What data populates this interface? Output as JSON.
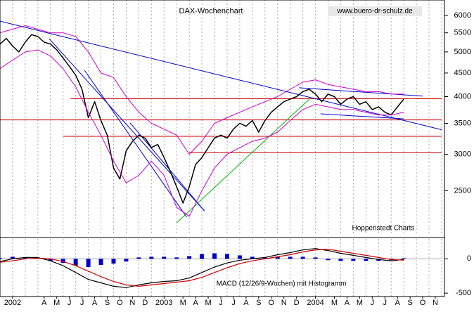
{
  "chart_data": [
    {
      "type": "line",
      "title": "DAX-Wochenchart",
      "source": "www.buero-dr-schulz.de",
      "annotation": "Hoppenstedt Charts",
      "log": true,
      "xlim": [
        0,
        35
      ],
      "ylim": [
        2000,
        6480
      ],
      "yticks": [
        2500,
        3000,
        3500,
        4000,
        4500,
        5000,
        5500,
        6000
      ],
      "xticks": [
        {
          "value": 1,
          "label": "2002"
        },
        {
          "value": 3.5,
          "label": "A"
        },
        {
          "value": 4.5,
          "label": "M"
        },
        {
          "value": 5.5,
          "label": "J"
        },
        {
          "value": 6.5,
          "label": "J"
        },
        {
          "value": 7.5,
          "label": "A"
        },
        {
          "value": 8.5,
          "label": "S"
        },
        {
          "value": 9.5,
          "label": "O"
        },
        {
          "value": 10.5,
          "label": "N"
        },
        {
          "value": 11.5,
          "label": "D"
        },
        {
          "value": 13,
          "label": "2003"
        },
        {
          "value": 14.5,
          "label": "M"
        },
        {
          "value": 15.5,
          "label": "A"
        },
        {
          "value": 16.5,
          "label": "M"
        },
        {
          "value": 17.5,
          "label": "J"
        },
        {
          "value": 18.5,
          "label": "J"
        },
        {
          "value": 19.5,
          "label": "A"
        },
        {
          "value": 20.5,
          "label": "S"
        },
        {
          "value": 21.5,
          "label": "O"
        },
        {
          "value": 22.5,
          "label": "N"
        },
        {
          "value": 23.5,
          "label": "D"
        },
        {
          "value": 25,
          "label": "2004"
        },
        {
          "value": 26.5,
          "label": "M"
        },
        {
          "value": 27.5,
          "label": "A"
        },
        {
          "value": 28.5,
          "label": "M"
        },
        {
          "value": 29.5,
          "label": "J"
        },
        {
          "value": 30.5,
          "label": "J"
        },
        {
          "value": 31.5,
          "label": "A"
        },
        {
          "value": 32.5,
          "label": "S"
        },
        {
          "value": 33.5,
          "label": "O"
        },
        {
          "value": 34.5,
          "label": "N"
        }
      ],
      "series": [
        {
          "color": "#000000",
          "width": 1.5,
          "x": [
            0,
            0.5,
            1,
            1.5,
            2,
            2.5,
            3,
            3.5,
            4,
            4.5,
            5,
            5.5,
            6,
            6.5,
            7,
            7.5,
            8,
            8.5,
            9,
            9.5,
            10,
            10.5,
            11,
            11.5,
            12,
            12.5,
            13,
            13.5,
            14,
            14.5,
            15,
            15.5,
            16,
            16.5,
            17,
            17.5,
            18,
            18.5,
            19,
            19.5,
            20,
            20.5,
            21,
            21.5,
            22,
            22.5,
            23,
            23.5,
            24,
            24.5,
            25,
            25.5,
            26,
            26.5,
            27,
            27.5,
            28,
            28.5,
            29,
            29.5,
            30,
            30.5,
            31,
            31.5,
            32
          ],
          "values": [
            5200,
            5350,
            5150,
            5000,
            5250,
            5450,
            5400,
            5250,
            5200,
            5050,
            4850,
            4650,
            4450,
            4150,
            3600,
            3900,
            3550,
            3300,
            2800,
            2650,
            3050,
            3200,
            3300,
            3250,
            3100,
            3150,
            2950,
            2750,
            2550,
            2350,
            2550,
            2850,
            2950,
            3100,
            3250,
            3300,
            3250,
            3400,
            3500,
            3450,
            3550,
            3350,
            3550,
            3700,
            3800,
            3900,
            3950,
            4000,
            4100,
            4150,
            4050,
            3900,
            4050,
            4000,
            3850,
            3950,
            4000,
            3850,
            3900,
            3750,
            3800,
            3700,
            3650,
            3800,
            3950
          ]
        },
        {
          "color": "#cc00cc",
          "width": 1,
          "x": [
            0,
            1,
            2,
            3,
            4,
            5,
            6,
            7,
            8,
            9,
            10,
            11,
            12,
            13,
            14,
            15,
            16,
            17,
            18,
            19,
            20,
            21,
            22,
            23,
            24,
            25,
            26,
            27,
            28,
            29,
            30,
            31,
            32
          ],
          "values": [
            5500,
            5600,
            5700,
            5600,
            5500,
            5500,
            5400,
            5000,
            4500,
            4400,
            4000,
            3700,
            3500,
            3400,
            3300,
            3000,
            3200,
            3500,
            3600,
            3700,
            3800,
            3900,
            4000,
            4150,
            4300,
            4350,
            4250,
            4200,
            4150,
            4100,
            4100,
            4050,
            4050
          ]
        },
        {
          "color": "#cc00cc",
          "width": 1,
          "x": [
            0,
            1,
            2,
            3,
            4,
            5,
            6,
            7,
            8,
            9,
            10,
            11,
            12,
            13,
            14,
            15,
            16,
            17,
            18,
            19,
            20,
            21,
            22,
            23,
            24,
            25,
            26,
            27,
            28,
            29,
            30,
            31,
            32
          ],
          "values": [
            4600,
            4800,
            5000,
            5050,
            4900,
            4600,
            4200,
            3700,
            3300,
            2900,
            2600,
            2700,
            2900,
            2700,
            2300,
            2200,
            2500,
            2800,
            3000,
            3100,
            3200,
            3250,
            3350,
            3550,
            3750,
            3850,
            3800,
            3750,
            3750,
            3700,
            3650,
            3650,
            3700
          ]
        }
      ],
      "levels": [
        {
          "value": 3960,
          "from": 5.6,
          "color": "#cc0000"
        },
        {
          "value": 3560,
          "from": 0,
          "color": "#cc0000"
        },
        {
          "value": 3280,
          "from": 5,
          "color": "#cc0000"
        },
        {
          "value": 3020,
          "from": 15,
          "color": "#cc0000"
        }
      ],
      "trendlines": [
        {
          "color": "#0000cc",
          "points": [
            [
              0,
              5830
            ],
            [
              35,
              3390
            ]
          ]
        },
        {
          "color": "#0000cc",
          "points": [
            [
              3.9,
              5340
            ],
            [
              16.2,
              2260
            ]
          ]
        },
        {
          "color": "#0000cc",
          "points": [
            [
              10.3,
              3510
            ],
            [
              16.2,
              2260
            ]
          ]
        },
        {
          "color": "#0000cc",
          "points": [
            [
              6.7,
              4560
            ],
            [
              14.8,
              2190
            ]
          ]
        },
        {
          "color": "#0000cc",
          "points": [
            [
              23.7,
              4180
            ],
            [
              33.5,
              4010
            ]
          ]
        },
        {
          "color": "#0000cc",
          "points": [
            [
              25.4,
              3670
            ],
            [
              32,
              3580
            ]
          ]
        },
        {
          "color": "#00bb00",
          "points": [
            [
              14,
              2130
            ],
            [
              24.6,
              3970
            ]
          ]
        }
      ]
    },
    {
      "type": "line",
      "title": "MACD (12/26/9-Wochen) mit Histogramm",
      "xlim": [
        0,
        35
      ],
      "ylim": [
        -550,
        290
      ],
      "yticks": [
        0,
        -500
      ],
      "series": [
        {
          "kind": "bar",
          "color": "#0000cc",
          "x": [
            0,
            1,
            2,
            3,
            4,
            5,
            6,
            7,
            8,
            9,
            10,
            11,
            12,
            13,
            14,
            15,
            16,
            17,
            18,
            19,
            20,
            21,
            22,
            23,
            24,
            25,
            26,
            27,
            28,
            29,
            30,
            31,
            32
          ],
          "values": [
            10,
            30,
            20,
            10,
            -30,
            -60,
            -100,
            -120,
            -90,
            -70,
            -40,
            20,
            30,
            30,
            20,
            40,
            70,
            80,
            70,
            50,
            30,
            20,
            30,
            30,
            30,
            20,
            -20,
            -30,
            -30,
            -30,
            -30,
            -20,
            10
          ]
        },
        {
          "color": "#000000",
          "width": 1.2,
          "x": [
            0,
            1,
            2,
            3,
            4,
            5,
            6,
            7,
            8,
            9,
            10,
            11,
            12,
            13,
            14,
            15,
            16,
            17,
            18,
            19,
            20,
            21,
            22,
            23,
            24,
            25,
            26,
            27,
            28,
            29,
            30,
            31,
            32
          ],
          "values": [
            -40,
            0,
            20,
            20,
            -30,
            -100,
            -200,
            -300,
            -350,
            -400,
            -420,
            -380,
            -350,
            -330,
            -320,
            -280,
            -200,
            -120,
            -60,
            -20,
            0,
            20,
            60,
            90,
            130,
            150,
            120,
            80,
            50,
            20,
            -10,
            -30,
            -10
          ]
        },
        {
          "color": "#cc0000",
          "width": 1.2,
          "x": [
            0,
            1,
            2,
            3,
            4,
            5,
            6,
            7,
            8,
            9,
            10,
            11,
            12,
            13,
            14,
            15,
            16,
            17,
            18,
            19,
            20,
            21,
            22,
            23,
            24,
            25,
            26,
            27,
            28,
            29,
            30,
            31,
            32
          ],
          "values": [
            -50,
            -30,
            0,
            10,
            0,
            -40,
            -100,
            -180,
            -260,
            -330,
            -380,
            -400,
            -380,
            -360,
            -340,
            -320,
            -270,
            -200,
            -130,
            -70,
            -30,
            0,
            30,
            60,
            100,
            130,
            140,
            110,
            80,
            50,
            20,
            -10,
            -20
          ]
        }
      ]
    }
  ]
}
